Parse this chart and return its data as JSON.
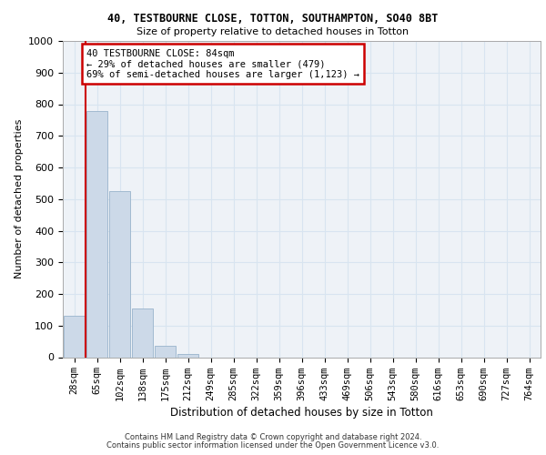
{
  "title_line1": "40, TESTBOURNE CLOSE, TOTTON, SOUTHAMPTON, SO40 8BT",
  "title_line2": "Size of property relative to detached houses in Totton",
  "xlabel": "Distribution of detached houses by size in Totton",
  "ylabel": "Number of detached properties",
  "bar_labels": [
    "28sqm",
    "65sqm",
    "102sqm",
    "138sqm",
    "175sqm",
    "212sqm",
    "249sqm",
    "285sqm",
    "322sqm",
    "359sqm",
    "396sqm",
    "433sqm",
    "469sqm",
    "506sqm",
    "543sqm",
    "580sqm",
    "616sqm",
    "653sqm",
    "690sqm",
    "727sqm",
    "764sqm"
  ],
  "bar_values": [
    130,
    778,
    524,
    155,
    37,
    10,
    0,
    0,
    0,
    0,
    0,
    0,
    0,
    0,
    0,
    0,
    0,
    0,
    0,
    0,
    0
  ],
  "bar_color": "#ccd9e8",
  "bar_edgecolor": "#99b3cc",
  "property_line_x": 0.5,
  "annotation_text": "40 TESTBOURNE CLOSE: 84sqm\n← 29% of detached houses are smaller (479)\n69% of semi-detached houses are larger (1,123) →",
  "annotation_box_facecolor": "#ffffff",
  "annotation_box_edgecolor": "#cc0000",
  "ylim": [
    0,
    1000
  ],
  "yticks": [
    0,
    100,
    200,
    300,
    400,
    500,
    600,
    700,
    800,
    900,
    1000
  ],
  "vline_color": "#cc0000",
  "grid_color": "#d8e4f0",
  "background_color": "#eef2f7",
  "footer_line1": "Contains HM Land Registry data © Crown copyright and database right 2024.",
  "footer_line2": "Contains public sector information licensed under the Open Government Licence v3.0."
}
